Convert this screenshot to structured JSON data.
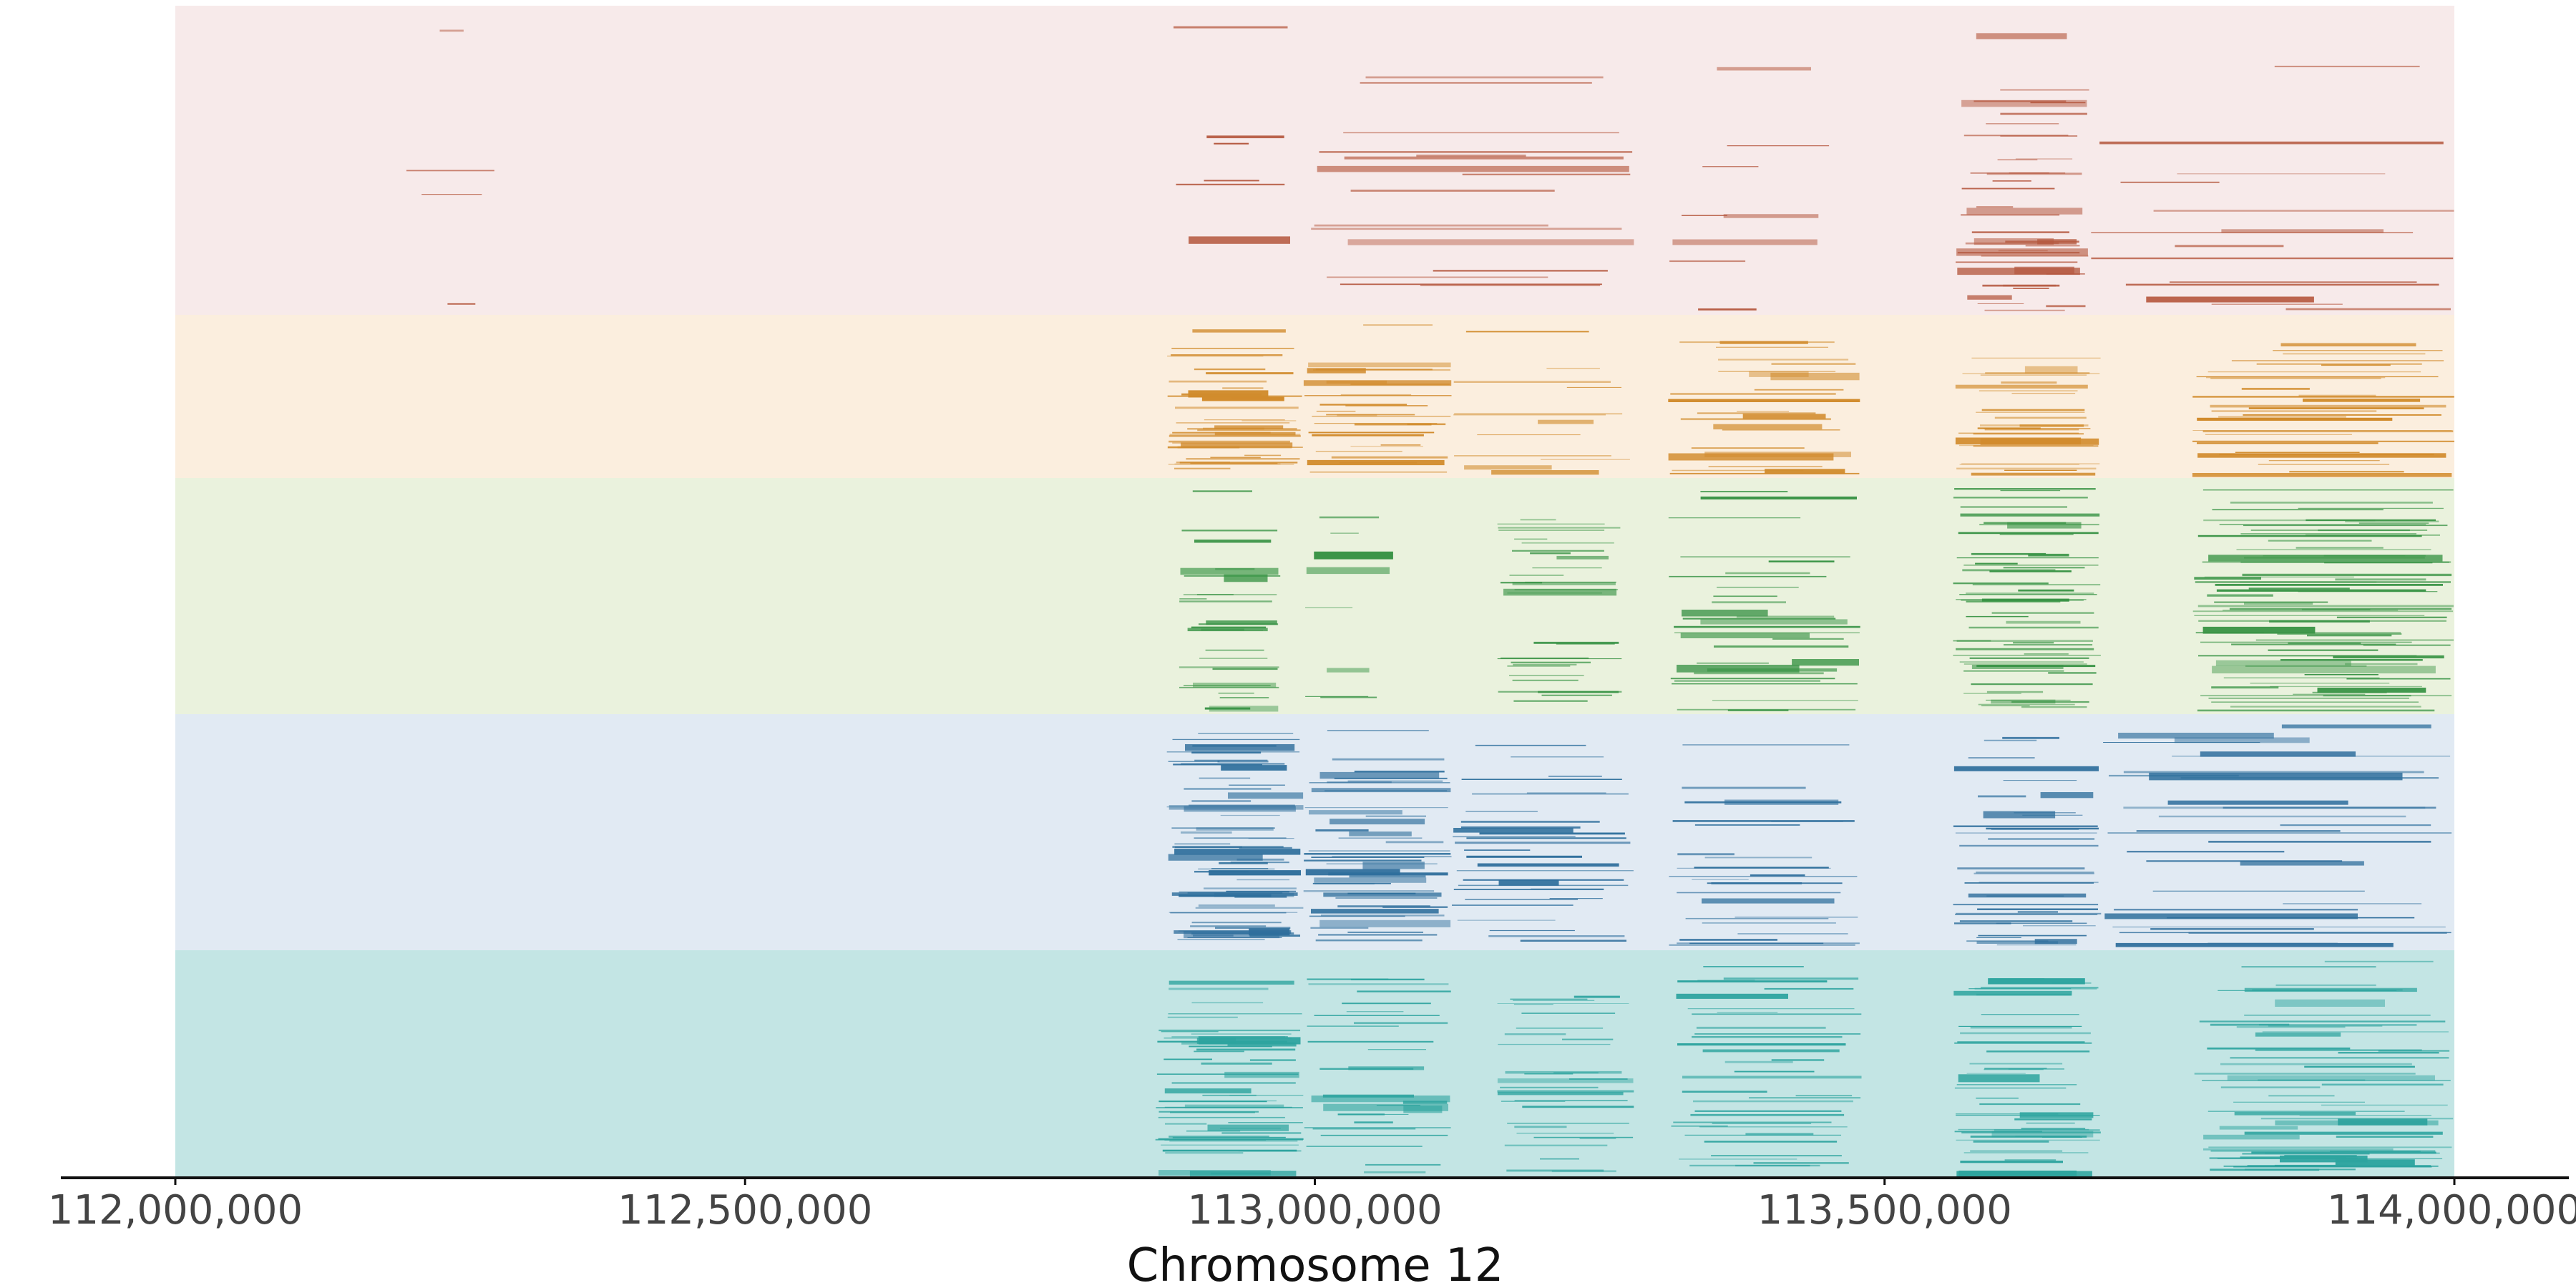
{
  "chart_data": {
    "type": "segments",
    "xlabel": "Chromosome 12",
    "xlim": [
      112000000,
      114000000
    ],
    "x_ticks": [
      112000000,
      112500000,
      113000000,
      113500000,
      114000000
    ],
    "x_tick_labels": [
      "112,000,000",
      "112,500,000",
      "113,000,000",
      "113,500,000",
      "114,000,000"
    ],
    "tracks": [
      {
        "color": "#b5583f",
        "background": "#f7eaea",
        "clusters": [
          {
            "start": 112200000,
            "end": 112280000,
            "n": 4
          },
          {
            "start": 112870000,
            "end": 112990000,
            "n": 6
          },
          {
            "start": 112990000,
            "end": 113280000,
            "n": 16
          },
          {
            "start": 113310000,
            "end": 113470000,
            "n": 8
          },
          {
            "start": 113560000,
            "end": 113680000,
            "n": 40
          },
          {
            "start": 113680000,
            "end": 114000000,
            "n": 14
          }
        ]
      },
      {
        "color": "#d18b2c",
        "background": "#fbeede",
        "clusters": [
          {
            "start": 112870000,
            "end": 112990000,
            "n": 40
          },
          {
            "start": 112990000,
            "end": 113120000,
            "n": 28
          },
          {
            "start": 113120000,
            "end": 113280000,
            "n": 12
          },
          {
            "start": 113310000,
            "end": 113480000,
            "n": 24
          },
          {
            "start": 113560000,
            "end": 113690000,
            "n": 28
          },
          {
            "start": 113770000,
            "end": 114000000,
            "n": 32
          }
        ]
      },
      {
        "color": "#3a9446",
        "background": "#eaf2dd",
        "clusters": [
          {
            "start": 112880000,
            "end": 112970000,
            "n": 28
          },
          {
            "start": 112990000,
            "end": 113070000,
            "n": 8
          },
          {
            "start": 113160000,
            "end": 113270000,
            "n": 30
          },
          {
            "start": 113310000,
            "end": 113480000,
            "n": 30
          },
          {
            "start": 113560000,
            "end": 113690000,
            "n": 55
          },
          {
            "start": 113770000,
            "end": 114000000,
            "n": 80
          }
        ]
      },
      {
        "color": "#2f6f9c",
        "background": "#e1eaf3",
        "clusters": [
          {
            "start": 112870000,
            "end": 112990000,
            "n": 65
          },
          {
            "start": 112990000,
            "end": 113120000,
            "n": 45
          },
          {
            "start": 113120000,
            "end": 113280000,
            "n": 30
          },
          {
            "start": 113310000,
            "end": 113480000,
            "n": 26
          },
          {
            "start": 113560000,
            "end": 113690000,
            "n": 38
          },
          {
            "start": 113690000,
            "end": 114000000,
            "n": 32
          }
        ]
      },
      {
        "color": "#2ea49f",
        "background": "#c3e5e4",
        "clusters": [
          {
            "start": 112860000,
            "end": 112990000,
            "n": 55
          },
          {
            "start": 112990000,
            "end": 113120000,
            "n": 28
          },
          {
            "start": 113160000,
            "end": 113280000,
            "n": 30
          },
          {
            "start": 113310000,
            "end": 113480000,
            "n": 36
          },
          {
            "start": 113560000,
            "end": 113690000,
            "n": 48
          },
          {
            "start": 113770000,
            "end": 114000000,
            "n": 60
          }
        ]
      }
    ]
  }
}
